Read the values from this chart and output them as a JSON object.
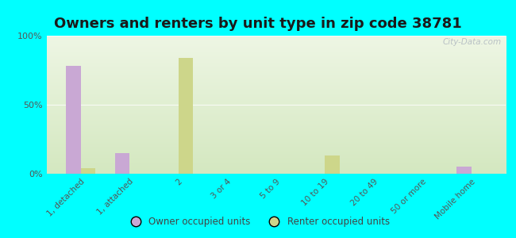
{
  "title": "Owners and renters by unit type in zip code 38781",
  "categories": [
    "1, detached",
    "1, attached",
    "2",
    "3 or 4",
    "5 to 9",
    "10 to 19",
    "20 to 49",
    "50 or more",
    "Mobile home"
  ],
  "owner_values": [
    78,
    15,
    0,
    0,
    0,
    0,
    0,
    0,
    5
  ],
  "renter_values": [
    4,
    0,
    84,
    0,
    0,
    13,
    0,
    0,
    0
  ],
  "owner_color": "#c9a8d4",
  "renter_color": "#cdd68a",
  "background_color": "#00ffff",
  "plot_bg_top_color": "#eef6e4",
  "plot_bg_bottom_color": "#d4e8c0",
  "ylim": [
    0,
    100
  ],
  "yticks": [
    0,
    50,
    100
  ],
  "ytick_labels": [
    "0%",
    "50%",
    "100%"
  ],
  "bar_width": 0.3,
  "legend_owner": "Owner occupied units",
  "legend_renter": "Renter occupied units",
  "title_fontsize": 13,
  "watermark": "City-Data.com",
  "axis_color": "#aaaaaa"
}
